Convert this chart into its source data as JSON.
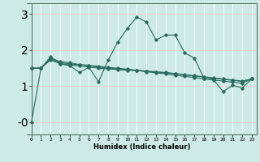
{
  "xlabel": "Humidex (Indice chaleur)",
  "bg_color": "#cdeae6",
  "grid_color_v": "#ffffff",
  "grid_color_h": "#f0c8c8",
  "line_color": "#2a6b5e",
  "xlim": [
    -0.5,
    23.5
  ],
  "ylim": [
    -0.35,
    3.3
  ],
  "yticks": [
    0,
    1,
    2,
    3
  ],
  "ytick_labels": [
    "-0",
    "1",
    "2",
    "3"
  ],
  "xticks": [
    0,
    1,
    2,
    3,
    4,
    5,
    6,
    7,
    8,
    9,
    10,
    11,
    12,
    13,
    14,
    15,
    16,
    17,
    18,
    19,
    20,
    21,
    22,
    23
  ],
  "series1": [
    0.0,
    1.5,
    1.82,
    1.62,
    1.57,
    1.38,
    1.52,
    1.12,
    1.72,
    2.22,
    2.6,
    2.92,
    2.78,
    2.28,
    2.42,
    2.42,
    1.92,
    1.78,
    1.22,
    1.18,
    0.85,
    1.02,
    0.95,
    1.2
  ],
  "series2": [
    1.5,
    1.5,
    1.78,
    1.68,
    1.65,
    1.6,
    1.58,
    1.55,
    1.52,
    1.5,
    1.47,
    1.44,
    1.4,
    1.37,
    1.34,
    1.3,
    1.27,
    1.24,
    1.2,
    1.17,
    1.14,
    1.11,
    1.08,
    1.2
  ],
  "series3": [
    1.5,
    1.5,
    1.75,
    1.65,
    1.62,
    1.59,
    1.56,
    1.53,
    1.5,
    1.48,
    1.46,
    1.44,
    1.42,
    1.4,
    1.38,
    1.35,
    1.32,
    1.29,
    1.26,
    1.23,
    1.2,
    1.17,
    1.14,
    1.2
  ],
  "series4": [
    1.5,
    1.5,
    1.73,
    1.62,
    1.59,
    1.56,
    1.53,
    1.5,
    1.48,
    1.46,
    1.44,
    1.43,
    1.41,
    1.39,
    1.37,
    1.34,
    1.31,
    1.28,
    1.25,
    1.22,
    1.19,
    1.16,
    1.13,
    1.2
  ]
}
